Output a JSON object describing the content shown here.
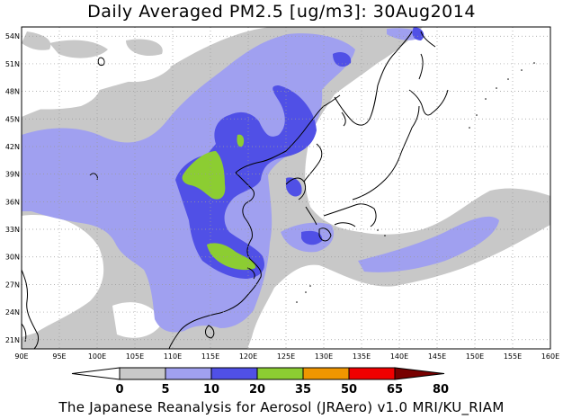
{
  "title": "Daily Averaged PM2.5 [ug/m3]: 30Aug2014",
  "footer": "The Japanese Reanalysis for Aerosol (JRAero) v1.0 MRI/KU_RIAM",
  "map": {
    "lon_range": [
      90,
      160
    ],
    "lat_range": [
      20,
      55
    ],
    "lon_ticks": [
      "90E",
      "95E",
      "100E",
      "105E",
      "110E",
      "115E",
      "120E",
      "125E",
      "130E",
      "135E",
      "140E",
      "145E",
      "150E",
      "155E",
      "160E"
    ],
    "lat_ticks": [
      "21N",
      "24N",
      "27N",
      "30N",
      "33N",
      "36N",
      "39N",
      "42N",
      "45N",
      "48N",
      "51N",
      "54N"
    ]
  },
  "colorbar": {
    "labels": [
      "0",
      "5",
      "10",
      "20",
      "35",
      "50",
      "65",
      "80"
    ],
    "colors": [
      "#ffffff",
      "#c8c8c8",
      "#a0a0f0",
      "#5050e6",
      "#8ccd32",
      "#f09600",
      "#f00000",
      "#780000"
    ]
  }
}
